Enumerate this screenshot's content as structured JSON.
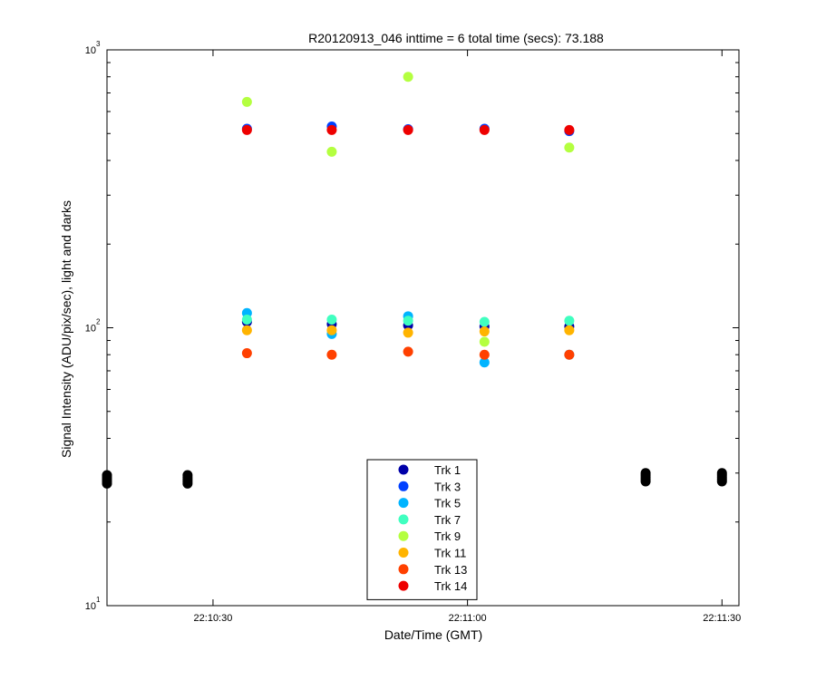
{
  "chart_data": {
    "type": "scatter",
    "title": "R20120913_046 inttime = 6 total time (secs): 73.188",
    "xlabel": "Date/Time (GMT)",
    "ylabel": "Signal Intensity (ADU/pix/sec), light and darks",
    "x_axis": {
      "range": [
        "22:10:17.5",
        "22:11:32"
      ],
      "ticks": [
        "22:10:30",
        "22:11:00",
        "22:11:30"
      ]
    },
    "y_axis": {
      "scale": "log",
      "range": [
        10,
        1000
      ],
      "ticks": [
        {
          "value": 10,
          "base": "10",
          "exp": "1"
        },
        {
          "value": 100,
          "base": "10",
          "exp": "2"
        },
        {
          "value": 1000,
          "base": "10",
          "exp": "3"
        }
      ]
    },
    "grid": false,
    "legend_position": "bottom-center",
    "series": [
      {
        "name": "Trk 1",
        "color": "#0000a8",
        "points": [
          [
            "22:10:34",
            105
          ],
          [
            "22:10:44",
            103
          ],
          [
            "22:10:53",
            102
          ],
          [
            "22:11:02",
            101
          ],
          [
            "22:11:12",
            101
          ]
        ]
      },
      {
        "name": "Trk 3",
        "color": "#0040ff",
        "points": [
          [
            "22:10:34",
            520
          ],
          [
            "22:10:44",
            530
          ],
          [
            "22:10:53",
            518
          ],
          [
            "22:11:02",
            520
          ],
          [
            "22:11:12",
            510
          ]
        ]
      },
      {
        "name": "Trk 5",
        "color": "#00b4ff",
        "points": [
          [
            "22:10:34",
            113
          ],
          [
            "22:10:44",
            95
          ],
          [
            "22:10:53",
            110
          ],
          [
            "22:11:02",
            75
          ],
          [
            "22:11:12",
            80
          ]
        ]
      },
      {
        "name": "Trk 7",
        "color": "#40ffc0",
        "points": [
          [
            "22:10:34",
            107
          ],
          [
            "22:10:44",
            107
          ],
          [
            "22:10:53",
            106
          ],
          [
            "22:11:02",
            105
          ],
          [
            "22:11:12",
            106
          ]
        ]
      },
      {
        "name": "Trk 9",
        "color": "#b4ff40",
        "points": [
          [
            "22:10:34",
            650
          ],
          [
            "22:10:44",
            430
          ],
          [
            "22:10:53",
            800
          ],
          [
            "22:11:02",
            89
          ],
          [
            "22:11:12",
            445
          ]
        ]
      },
      {
        "name": "Trk 11",
        "color": "#ffb400",
        "points": [
          [
            "22:10:34",
            98
          ],
          [
            "22:10:44",
            98
          ],
          [
            "22:10:53",
            96
          ],
          [
            "22:11:02",
            97
          ],
          [
            "22:11:12",
            98
          ]
        ]
      },
      {
        "name": "Trk 13",
        "color": "#ff4000",
        "points": [
          [
            "22:10:34",
            81
          ],
          [
            "22:10:44",
            80
          ],
          [
            "22:10:53",
            82
          ],
          [
            "22:11:02",
            80
          ],
          [
            "22:11:12",
            80
          ]
        ]
      },
      {
        "name": "Trk 14",
        "color": "#ee0000",
        "points": [
          [
            "22:10:34",
            515
          ],
          [
            "22:10:44",
            515
          ],
          [
            "22:10:53",
            515
          ],
          [
            "22:11:02",
            515
          ],
          [
            "22:11:12",
            515
          ]
        ]
      }
    ],
    "dark_points": {
      "color": "#000000",
      "points": [
        [
          "22:10:17.5",
          27.5
        ],
        [
          "22:10:17.5",
          28
        ],
        [
          "22:10:17.5",
          28.5
        ],
        [
          "22:10:17.5",
          29
        ],
        [
          "22:10:17.5",
          29.5
        ],
        [
          "22:10:27",
          27.5
        ],
        [
          "22:10:27",
          28
        ],
        [
          "22:10:27",
          28.5
        ],
        [
          "22:10:27",
          29
        ],
        [
          "22:10:27",
          29.5
        ],
        [
          "22:11:21",
          28
        ],
        [
          "22:11:21",
          28.5
        ],
        [
          "22:11:21",
          29
        ],
        [
          "22:11:21",
          29.5
        ],
        [
          "22:11:21",
          30
        ],
        [
          "22:11:30",
          28
        ],
        [
          "22:11:30",
          28.5
        ],
        [
          "22:11:30",
          29
        ],
        [
          "22:11:30",
          29.5
        ],
        [
          "22:11:30",
          30
        ]
      ]
    }
  }
}
